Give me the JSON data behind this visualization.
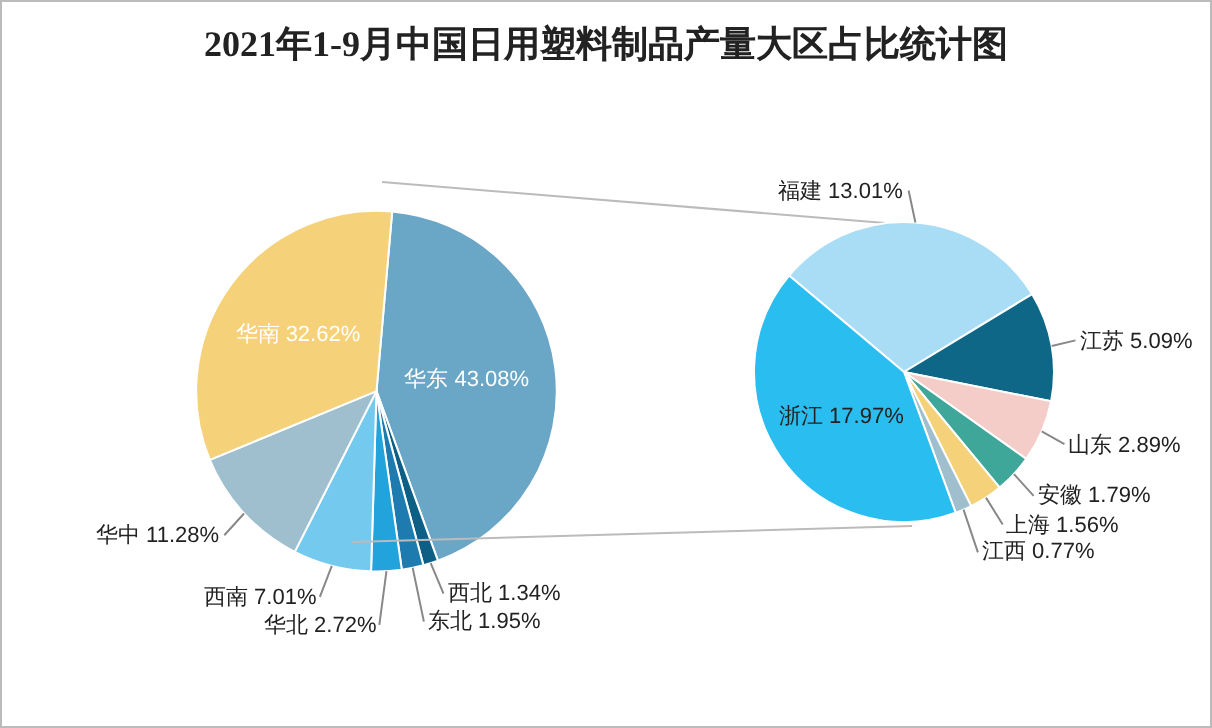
{
  "chart_data": [
    {
      "type": "pie",
      "title": "2021年1-9月中国日用塑料制品产量大区占比统计图",
      "categories": [
        "华东",
        "西北",
        "东北",
        "华北",
        "西南",
        "华中",
        "华南"
      ],
      "values": [
        43.08,
        1.34,
        1.95,
        2.72,
        7.01,
        11.28,
        32.62
      ],
      "value_labels": [
        "43.08%",
        "1.34%",
        "1.95%",
        "2.72%",
        "7.01%",
        "11.28%",
        "32.62%"
      ],
      "colors": [
        "#6aa6c6",
        "#0e5f86",
        "#1d7bb0",
        "#22a3dc",
        "#73c9ee",
        "#9fbfcf",
        "#f5d27a"
      ],
      "legend": false
    },
    {
      "type": "pie",
      "categories": [
        "福建",
        "江苏",
        "山东",
        "安徽",
        "上海",
        "江西",
        "浙江"
      ],
      "values": [
        13.01,
        5.09,
        2.89,
        1.79,
        1.56,
        0.77,
        17.97
      ],
      "value_labels": [
        "13.01%",
        "5.09%",
        "2.89%",
        "1.79%",
        "1.56%",
        "0.77%",
        "17.97%"
      ],
      "colors": [
        "#a9dcf5",
        "#0f6788",
        "#f4cdc8",
        "#3fa79a",
        "#f5d27a",
        "#9fbfcf",
        "#29bdf0"
      ],
      "legend": false
    }
  ]
}
